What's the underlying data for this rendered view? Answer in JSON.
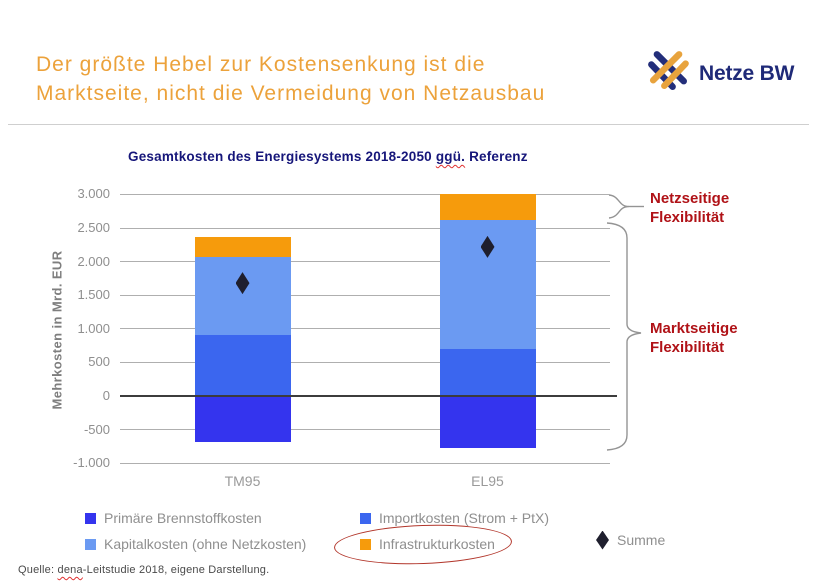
{
  "header": {
    "title_line1": "Der größte Hebel zur Kostensenkung ist die",
    "title_line2": "Marktseite, nicht die Vermeidung von Netzausbau",
    "title_color": "#ECA23B",
    "logo_text": "Netze BW",
    "logo_navy": "#1F2A78",
    "logo_amber": "#E8A33D"
  },
  "chart_data": {
    "type": "bar",
    "stacked": true,
    "title_part1": "Gesamtkosten des Energiesystems 2018-2050 ",
    "title_squiggle": "ggü.",
    "title_part2": " Referenz",
    "ylabel": "Mehrkosten in Mrd. EUR",
    "xlabel": "",
    "grid": true,
    "legend_position": "bottom",
    "ylim": [
      -1000,
      3000
    ],
    "categories": [
      "TM95",
      "EL95"
    ],
    "series": [
      {
        "name": "Primäre Brennstoffkosten",
        "color": "#3434EE",
        "values": [
          -680,
          -780
        ]
      },
      {
        "name": "Importkosten (Strom + PtX)",
        "color": "#3B66EF",
        "values": [
          910,
          700
        ]
      },
      {
        "name": "Kapitalkosten (ohne Netzkosten)",
        "color": "#6B9AF2",
        "values": [
          1160,
          1920
        ]
      },
      {
        "name": "Infrastrukturkosten",
        "color": "#F69B0C",
        "values": [
          290,
          380
        ]
      }
    ],
    "summe": {
      "name": "Summe",
      "color": "#1F1F2E",
      "values": [
        1680,
        2220
      ]
    },
    "yticks": [
      {
        "value": 3000,
        "label": "3.000"
      },
      {
        "value": 2500,
        "label": "2.500"
      },
      {
        "value": 2000,
        "label": "2.000"
      },
      {
        "value": 1500,
        "label": "1.500"
      },
      {
        "value": 1000,
        "label": "1.000"
      },
      {
        "value": 500,
        "label": "500"
      },
      {
        "value": 0,
        "label": "0"
      },
      {
        "value": -500,
        "label": "-500"
      },
      {
        "value": -1000,
        "label": "-1.000"
      }
    ]
  },
  "annotations": {
    "color": "#B01217",
    "netz_line1": "Netzseitige",
    "netz_line2": "Flexibilität",
    "markt_line1": "Marktseitige",
    "markt_line2": "Flexibilität"
  },
  "source": {
    "prefix": "Quelle: ",
    "underlined": "dena",
    "suffix": "-Leitstudie 2018, eigene Darstellung."
  }
}
